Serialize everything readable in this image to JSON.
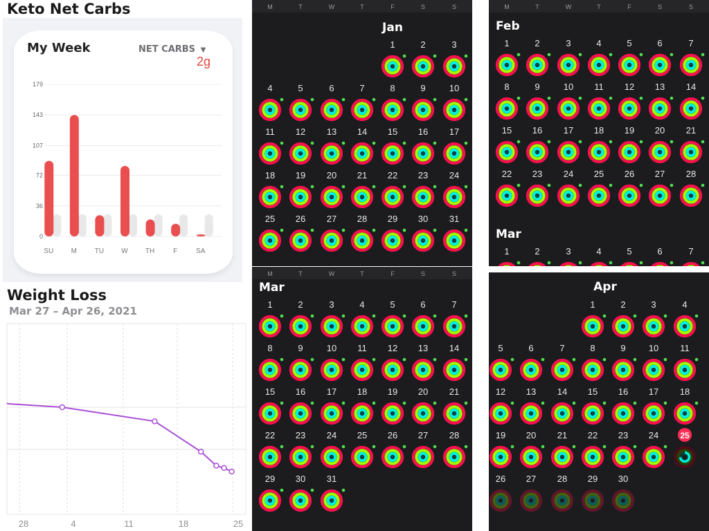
{
  "keto": {
    "title": "Keto Net Carbs",
    "card_title": "My Week",
    "metric_label": "NET CARBS",
    "metric_value": "2g"
  },
  "weight": {
    "title": "Weight Loss",
    "date_range": "Mar 27 – Apr 26, 2021"
  },
  "colors": {
    "bar": "#e94f4f",
    "bar_ghost": "#e8e8e8",
    "line": "#a64fd6",
    "panel_bg": "#1c1c1e",
    "ring_move": "#fa114f",
    "ring_exercise": "#a0ff00",
    "ring_stand": "#00f0e0",
    "today_badge": "#ff2d55"
  },
  "chart_data": [
    {
      "type": "bar",
      "categories": [
        "SU",
        "M",
        "TU",
        "W",
        "TH",
        "F",
        "SA"
      ],
      "values": [
        89,
        143,
        25,
        83,
        20,
        15,
        2
      ],
      "yticks": [
        0,
        36,
        72,
        107,
        143,
        179
      ],
      "ylim": [
        0,
        179
      ],
      "title": "My Week",
      "xlabel": "",
      "ylabel": ""
    },
    {
      "type": "line",
      "title": "Weight Loss",
      "xticks": [
        "28",
        "4",
        "11",
        "18",
        "25"
      ],
      "x": [
        "Mar 27",
        "Apr 3",
        "Apr 15",
        "Apr 21",
        "Apr 23",
        "Apr 24",
        "Apr 25"
      ],
      "values": [
        0.58,
        0.55,
        0.43,
        0.17,
        0.05,
        0.03,
        0.0
      ],
      "xlabel": "",
      "ylabel": ""
    }
  ],
  "calendar": {
    "weekdays": [
      "M",
      "T",
      "W",
      "T",
      "F",
      "S",
      "S"
    ],
    "months": {
      "jan": "Jan",
      "feb": "Feb",
      "mar": "Mar",
      "apr": "Apr"
    },
    "today_label": "25"
  }
}
